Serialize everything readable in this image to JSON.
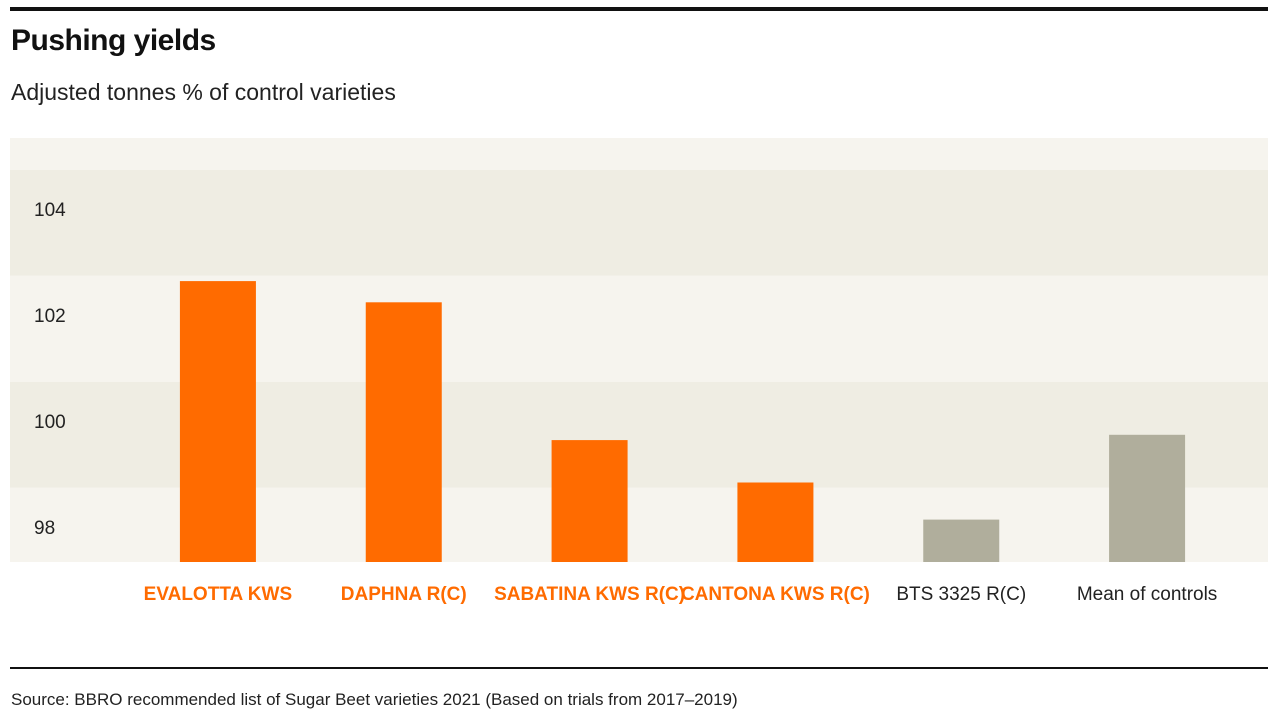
{
  "header": {
    "title": "Pushing yields",
    "subtitle": "Adjusted tonnes % of control varieties"
  },
  "footer": {
    "source": "Source: BBRO recommended list of Sugar Beet varieties 2021 (Based on trials from 2017–2019)"
  },
  "colors": {
    "highlight": "#ff6b00",
    "control": "#b0ae9c",
    "band_light": "#f6f4ee",
    "band_dark": "#efede3",
    "text_dark": "#222222"
  },
  "chart_data": {
    "type": "bar",
    "title": "Pushing yields",
    "subtitle": "Adjusted tonnes % of control varieties",
    "categories": [
      "EVALOTTA KWS",
      "DAPHNA R(C)",
      "SABATINA KWS R(C)",
      "CANTONA KWS R(C)",
      "BTS 3325 R(C)",
      "Mean of controls"
    ],
    "values": [
      102.9,
      102.5,
      99.9,
      99.1,
      98.4,
      100.0
    ],
    "highlighted": [
      true,
      true,
      true,
      true,
      false,
      false
    ],
    "yticks": [
      98,
      100,
      102,
      104
    ],
    "ylim": [
      97.6,
      105.6
    ],
    "grid": "alternating horizontal bands",
    "legend": "none"
  }
}
